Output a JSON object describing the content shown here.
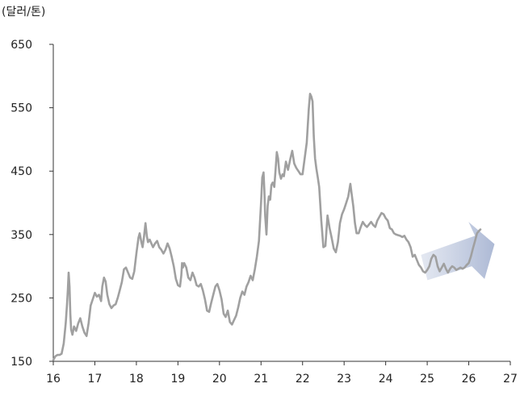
{
  "chart_data": {
    "type": "line",
    "title": "",
    "unit_label": "(달러/톤)",
    "xlabel": "",
    "ylabel": "",
    "xlim": [
      16,
      27
    ],
    "ylim": [
      150,
      650
    ],
    "x_ticks": [
      "16",
      "17",
      "18",
      "19",
      "20",
      "21",
      "22",
      "23",
      "24",
      "25",
      "26",
      "27"
    ],
    "y_ticks": [
      "150",
      "250",
      "350",
      "450",
      "550",
      "650"
    ],
    "grid": false,
    "legend": "none",
    "line_color": "#a0a0a0",
    "series": [
      {
        "name": "",
        "points": [
          [
            16.0,
            152
          ],
          [
            16.05,
            158
          ],
          [
            16.1,
            160
          ],
          [
            16.15,
            160
          ],
          [
            16.2,
            162
          ],
          [
            16.25,
            178
          ],
          [
            16.3,
            210
          ],
          [
            16.33,
            240
          ],
          [
            16.35,
            262
          ],
          [
            16.37,
            290
          ],
          [
            16.39,
            268
          ],
          [
            16.41,
            225
          ],
          [
            16.43,
            200
          ],
          [
            16.46,
            192
          ],
          [
            16.5,
            205
          ],
          [
            16.55,
            198
          ],
          [
            16.6,
            210
          ],
          [
            16.65,
            218
          ],
          [
            16.7,
            205
          ],
          [
            16.75,
            195
          ],
          [
            16.8,
            190
          ],
          [
            16.85,
            210
          ],
          [
            16.9,
            238
          ],
          [
            16.95,
            248
          ],
          [
            17.0,
            258
          ],
          [
            17.05,
            252
          ],
          [
            17.1,
            255
          ],
          [
            17.15,
            245
          ],
          [
            17.18,
            268
          ],
          [
            17.22,
            282
          ],
          [
            17.26,
            276
          ],
          [
            17.3,
            255
          ],
          [
            17.35,
            240
          ],
          [
            17.4,
            234
          ],
          [
            17.45,
            238
          ],
          [
            17.5,
            240
          ],
          [
            17.55,
            250
          ],
          [
            17.6,
            262
          ],
          [
            17.65,
            275
          ],
          [
            17.7,
            295
          ],
          [
            17.75,
            298
          ],
          [
            17.8,
            290
          ],
          [
            17.85,
            282
          ],
          [
            17.9,
            280
          ],
          [
            17.95,
            292
          ],
          [
            18.0,
            320
          ],
          [
            18.05,
            345
          ],
          [
            18.08,
            352
          ],
          [
            18.12,
            338
          ],
          [
            18.15,
            330
          ],
          [
            18.18,
            345
          ],
          [
            18.22,
            368
          ],
          [
            18.25,
            348
          ],
          [
            18.28,
            338
          ],
          [
            18.32,
            342
          ],
          [
            18.36,
            336
          ],
          [
            18.4,
            330
          ],
          [
            18.45,
            336
          ],
          [
            18.5,
            340
          ],
          [
            18.55,
            330
          ],
          [
            18.6,
            326
          ],
          [
            18.65,
            320
          ],
          [
            18.7,
            326
          ],
          [
            18.75,
            336
          ],
          [
            18.8,
            328
          ],
          [
            18.85,
            315
          ],
          [
            18.9,
            300
          ],
          [
            18.95,
            280
          ],
          [
            19.0,
            270
          ],
          [
            19.05,
            268
          ],
          [
            19.08,
            285
          ],
          [
            19.1,
            305
          ],
          [
            19.12,
            298
          ],
          [
            19.15,
            305
          ],
          [
            19.2,
            298
          ],
          [
            19.25,
            282
          ],
          [
            19.3,
            278
          ],
          [
            19.35,
            290
          ],
          [
            19.4,
            282
          ],
          [
            19.45,
            270
          ],
          [
            19.5,
            268
          ],
          [
            19.55,
            272
          ],
          [
            19.6,
            262
          ],
          [
            19.65,
            248
          ],
          [
            19.7,
            230
          ],
          [
            19.75,
            228
          ],
          [
            19.8,
            242
          ],
          [
            19.85,
            255
          ],
          [
            19.9,
            268
          ],
          [
            19.95,
            272
          ],
          [
            20.0,
            262
          ],
          [
            20.05,
            248
          ],
          [
            20.1,
            225
          ],
          [
            20.15,
            220
          ],
          [
            20.2,
            230
          ],
          [
            20.25,
            212
          ],
          [
            20.3,
            208
          ],
          [
            20.35,
            215
          ],
          [
            20.4,
            222
          ],
          [
            20.45,
            235
          ],
          [
            20.5,
            250
          ],
          [
            20.55,
            260
          ],
          [
            20.6,
            255
          ],
          [
            20.65,
            268
          ],
          [
            20.7,
            275
          ],
          [
            20.75,
            285
          ],
          [
            20.8,
            278
          ],
          [
            20.85,
            295
          ],
          [
            20.9,
            315
          ],
          [
            20.95,
            340
          ],
          [
            21.0,
            400
          ],
          [
            21.03,
            440
          ],
          [
            21.06,
            448
          ],
          [
            21.08,
            420
          ],
          [
            21.1,
            380
          ],
          [
            21.13,
            350
          ],
          [
            21.16,
            395
          ],
          [
            21.19,
            410
          ],
          [
            21.22,
            405
          ],
          [
            21.25,
            428
          ],
          [
            21.28,
            432
          ],
          [
            21.32,
            425
          ],
          [
            21.35,
            452
          ],
          [
            21.38,
            480
          ],
          [
            21.41,
            470
          ],
          [
            21.44,
            448
          ],
          [
            21.48,
            438
          ],
          [
            21.52,
            445
          ],
          [
            21.55,
            442
          ],
          [
            21.6,
            465
          ],
          [
            21.65,
            452
          ],
          [
            21.7,
            468
          ],
          [
            21.75,
            482
          ],
          [
            21.8,
            462
          ],
          [
            21.85,
            455
          ],
          [
            21.9,
            450
          ],
          [
            21.95,
            445
          ],
          [
            22.0,
            445
          ],
          [
            22.05,
            470
          ],
          [
            22.1,
            495
          ],
          [
            22.15,
            548
          ],
          [
            22.18,
            572
          ],
          [
            22.21,
            568
          ],
          [
            22.24,
            560
          ],
          [
            22.27,
            505
          ],
          [
            22.3,
            470
          ],
          [
            22.33,
            455
          ],
          [
            22.37,
            438
          ],
          [
            22.4,
            425
          ],
          [
            22.45,
            372
          ],
          [
            22.5,
            330
          ],
          [
            22.55,
            332
          ],
          [
            22.6,
            380
          ],
          [
            22.65,
            360
          ],
          [
            22.7,
            345
          ],
          [
            22.75,
            328
          ],
          [
            22.8,
            322
          ],
          [
            22.85,
            338
          ],
          [
            22.9,
            368
          ],
          [
            22.95,
            382
          ],
          [
            23.0,
            390
          ],
          [
            23.05,
            400
          ],
          [
            23.1,
            410
          ],
          [
            23.15,
            430
          ],
          [
            23.18,
            415
          ],
          [
            23.22,
            395
          ],
          [
            23.26,
            368
          ],
          [
            23.3,
            352
          ],
          [
            23.35,
            352
          ],
          [
            23.4,
            362
          ],
          [
            23.45,
            370
          ],
          [
            23.5,
            365
          ],
          [
            23.55,
            362
          ],
          [
            23.6,
            366
          ],
          [
            23.65,
            370
          ],
          [
            23.7,
            365
          ],
          [
            23.75,
            362
          ],
          [
            23.8,
            372
          ],
          [
            23.85,
            378
          ],
          [
            23.9,
            384
          ],
          [
            23.95,
            382
          ],
          [
            24.0,
            376
          ],
          [
            24.05,
            372
          ],
          [
            24.1,
            360
          ],
          [
            24.15,
            358
          ],
          [
            24.2,
            352
          ],
          [
            24.25,
            350
          ],
          [
            24.3,
            349
          ],
          [
            24.35,
            348
          ],
          [
            24.4,
            346
          ],
          [
            24.45,
            348
          ],
          [
            24.5,
            342
          ],
          [
            24.55,
            338
          ],
          [
            24.6,
            330
          ],
          [
            24.65,
            315
          ],
          [
            24.7,
            318
          ],
          [
            24.75,
            310
          ],
          [
            24.8,
            302
          ],
          [
            24.85,
            298
          ],
          [
            24.9,
            292
          ],
          [
            24.95,
            290
          ],
          [
            25.0,
            294
          ],
          [
            25.05,
            300
          ],
          [
            25.1,
            312
          ],
          [
            25.15,
            318
          ],
          [
            25.2,
            315
          ],
          [
            25.25,
            300
          ],
          [
            25.3,
            292
          ],
          [
            25.35,
            298
          ],
          [
            25.4,
            304
          ],
          [
            25.45,
            296
          ],
          [
            25.5,
            290
          ],
          [
            25.55,
            296
          ],
          [
            25.6,
            300
          ],
          [
            25.65,
            298
          ],
          [
            25.7,
            294
          ],
          [
            25.75,
            296
          ],
          [
            25.8,
            298
          ],
          [
            25.85,
            296
          ],
          [
            25.9,
            298
          ],
          [
            25.95,
            302
          ],
          [
            26.0,
            305
          ],
          [
            26.05,
            315
          ],
          [
            26.1,
            328
          ],
          [
            26.15,
            340
          ],
          [
            26.2,
            352
          ],
          [
            26.25,
            356
          ],
          [
            26.28,
            358
          ]
        ]
      }
    ]
  }
}
